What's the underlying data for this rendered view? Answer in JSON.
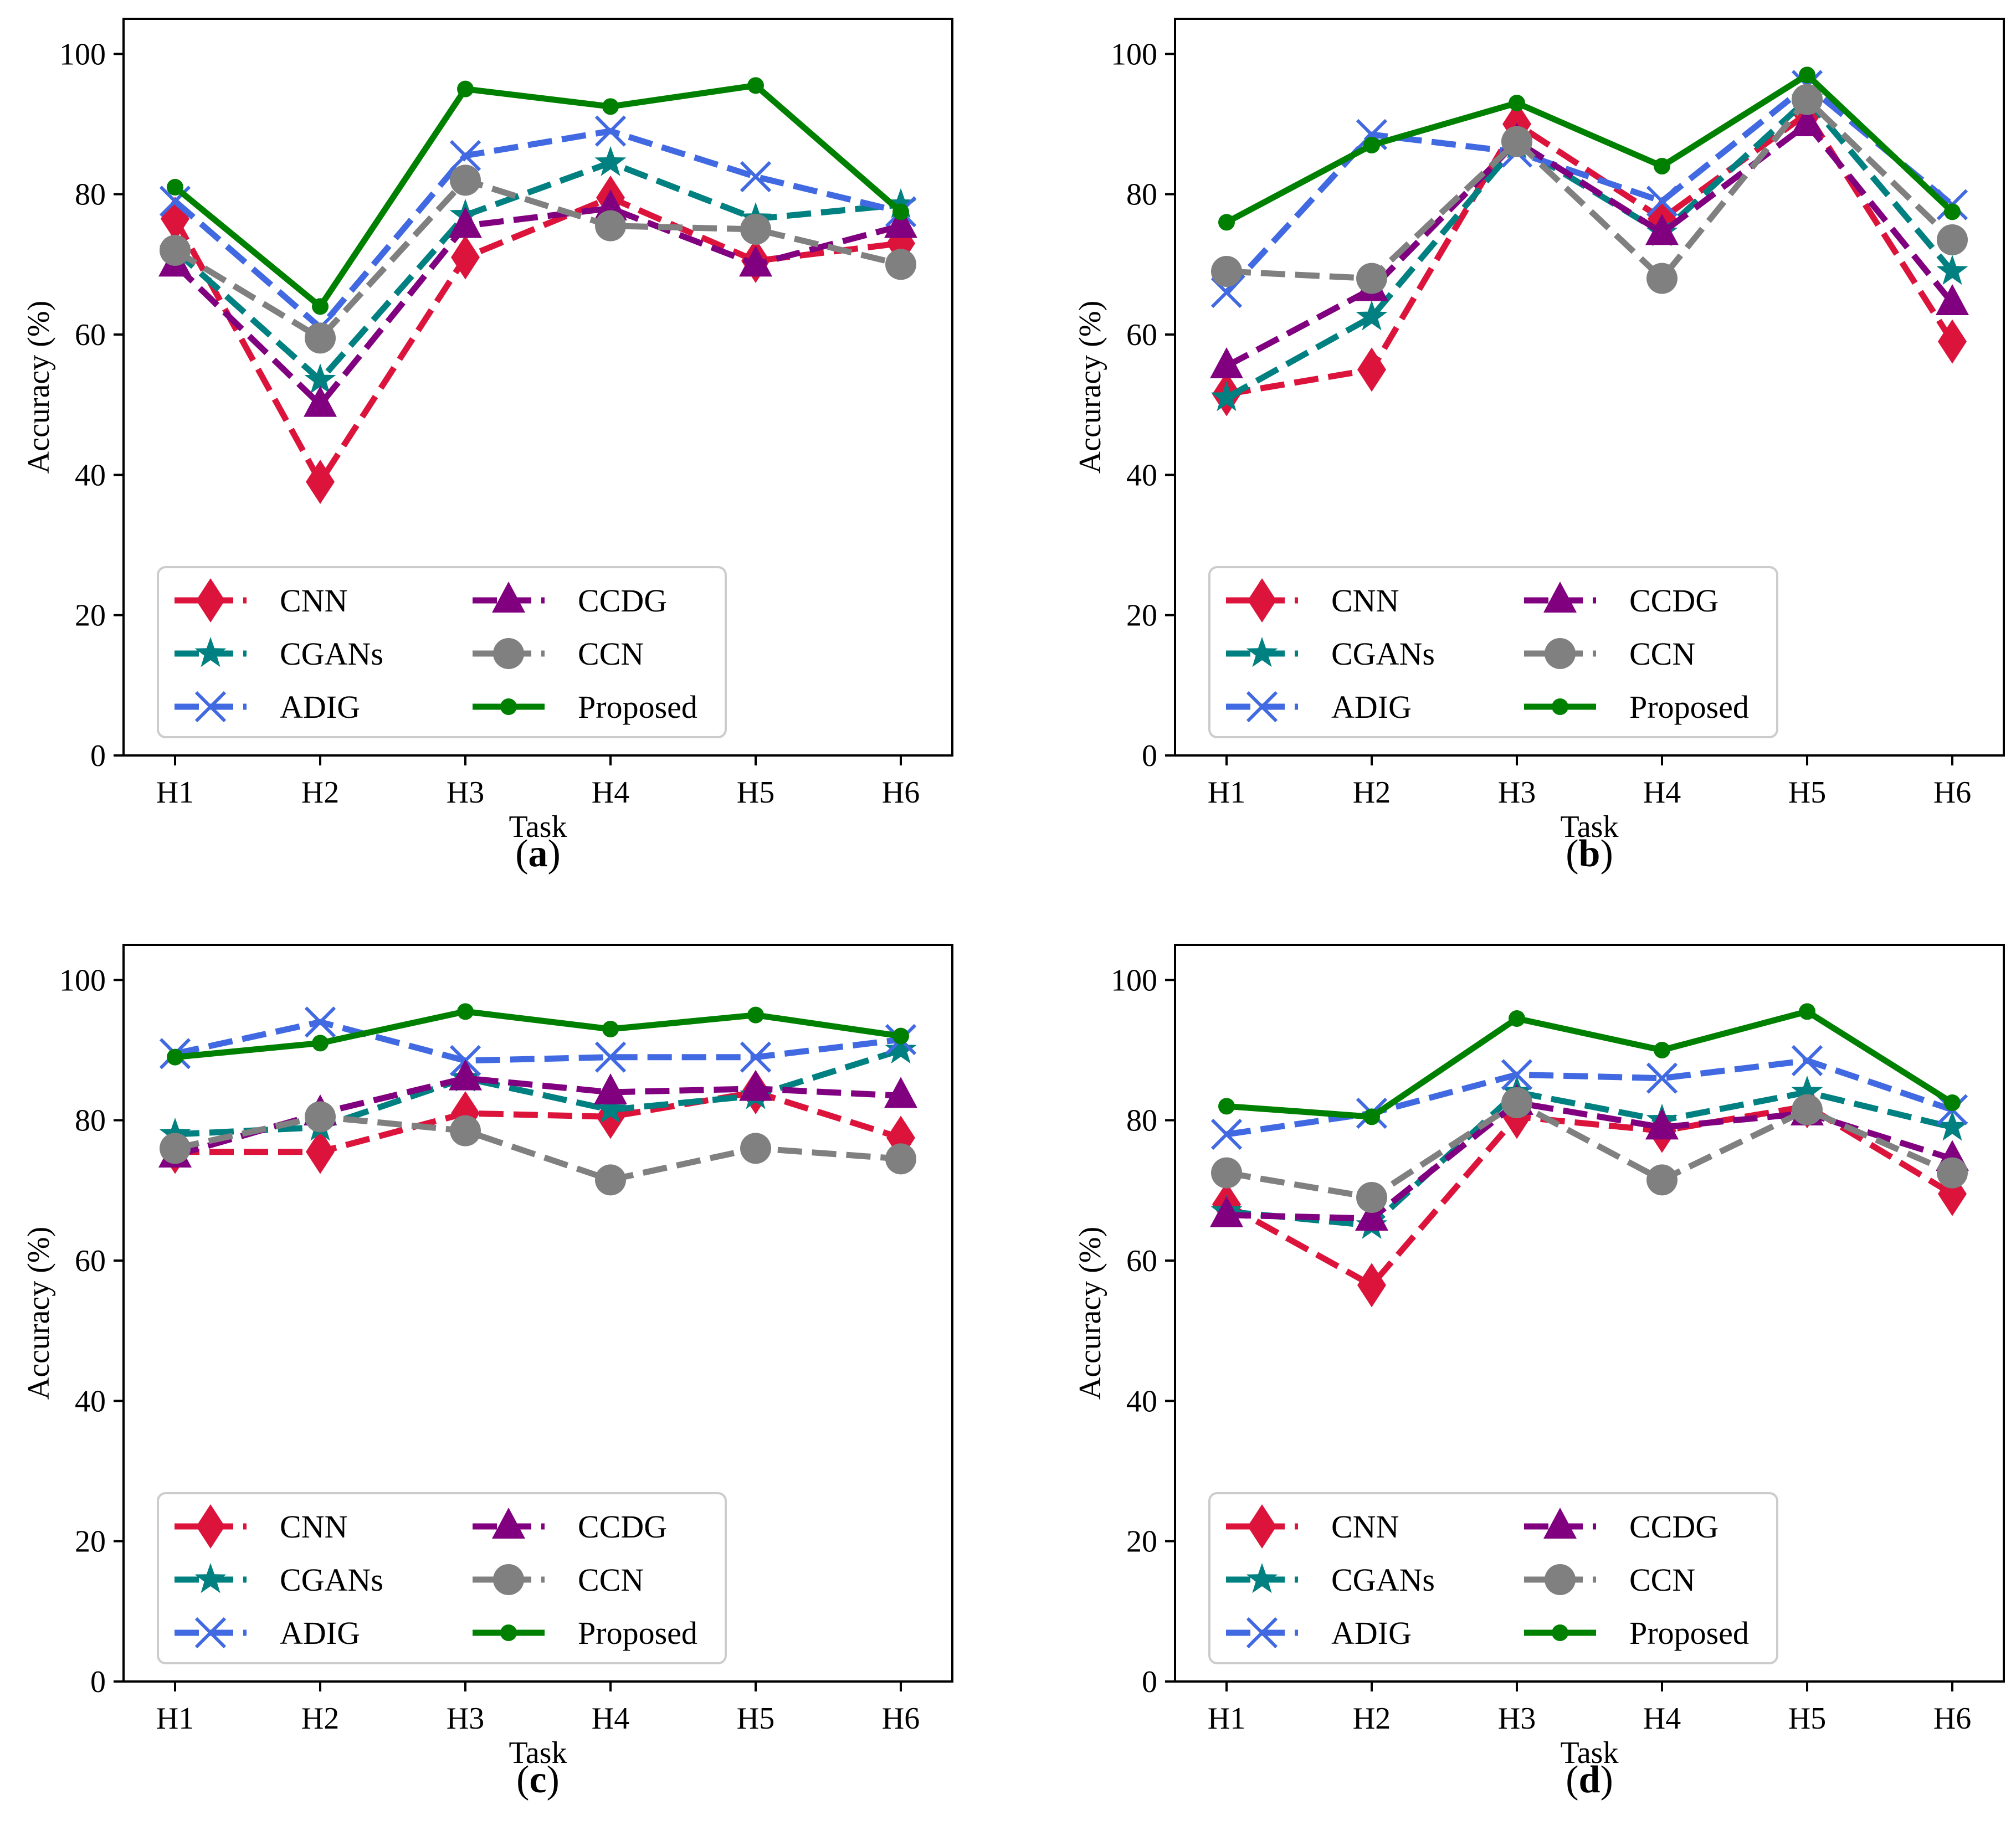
{
  "figure": {
    "panel_label_format": "({id})"
  },
  "legend": {
    "entries": [
      {
        "name": "CNN",
        "color": "#dc143c",
        "marker": "diamond",
        "dash": "dashed"
      },
      {
        "name": "CGANs",
        "color": "#008080",
        "marker": "star",
        "dash": "dashed"
      },
      {
        "name": "ADIG",
        "color": "#4169e1",
        "marker": "x",
        "dash": "dashed"
      },
      {
        "name": "CCDG",
        "color": "#800080",
        "marker": "triangle",
        "dash": "dashed"
      },
      {
        "name": "CCN",
        "color": "#808080",
        "marker": "circle",
        "dash": "dashed"
      },
      {
        "name": "Proposed",
        "color": "#008000",
        "marker": "dot",
        "dash": "solid"
      }
    ],
    "placement": "lower-left"
  },
  "chart_data": [
    {
      "id": "a",
      "type": "line",
      "xlabel": "Task",
      "ylabel": "Accuracy (%)",
      "ylim": [
        0,
        105
      ],
      "yticks": [
        0,
        20,
        40,
        60,
        80,
        100
      ],
      "categories": [
        "H1",
        "H2",
        "H3",
        "H4",
        "H5",
        "H6"
      ],
      "series": [
        {
          "name": "CNN",
          "values": [
            76.5,
            39.0,
            71.0,
            79.5,
            70.5,
            73.0
          ]
        },
        {
          "name": "CGANs",
          "values": [
            72.0,
            53.5,
            77.0,
            84.5,
            76.5,
            78.5
          ]
        },
        {
          "name": "ADIG",
          "values": [
            79.0,
            61.0,
            85.5,
            89.0,
            82.5,
            77.5
          ]
        },
        {
          "name": "CCDG",
          "values": [
            70.0,
            50.0,
            75.5,
            78.0,
            70.0,
            75.5
          ]
        },
        {
          "name": "CCN",
          "values": [
            72.0,
            59.5,
            82.0,
            75.5,
            75.0,
            70.0
          ]
        },
        {
          "name": "Proposed",
          "values": [
            81.0,
            64.0,
            95.0,
            92.5,
            95.5,
            77.5
          ]
        }
      ]
    },
    {
      "id": "b",
      "type": "line",
      "xlabel": "Task",
      "ylabel": "Accuracy (%)",
      "ylim": [
        0,
        105
      ],
      "yticks": [
        0,
        20,
        40,
        60,
        80,
        100
      ],
      "categories": [
        "H1",
        "H2",
        "H3",
        "H4",
        "H5",
        "H6"
      ],
      "series": [
        {
          "name": "CNN",
          "values": [
            51.5,
            55.0,
            90.0,
            76.5,
            91.5,
            59.0
          ]
        },
        {
          "name": "CGANs",
          "values": [
            51.0,
            62.5,
            87.0,
            74.5,
            93.5,
            69.0
          ]
        },
        {
          "name": "ADIG",
          "values": [
            66.0,
            88.5,
            86.0,
            79.0,
            95.5,
            78.5
          ]
        },
        {
          "name": "CCDG",
          "values": [
            55.5,
            66.5,
            87.5,
            74.5,
            90.0,
            64.5
          ]
        },
        {
          "name": "CCN",
          "values": [
            69.0,
            68.0,
            87.5,
            68.0,
            93.5,
            73.5
          ]
        },
        {
          "name": "Proposed",
          "values": [
            76.0,
            87.0,
            93.0,
            84.0,
            97.0,
            77.5
          ]
        }
      ]
    },
    {
      "id": "c",
      "type": "line",
      "xlabel": "Task",
      "ylabel": "Accuracy (%)",
      "ylim": [
        0,
        105
      ],
      "yticks": [
        0,
        20,
        40,
        60,
        80,
        100
      ],
      "categories": [
        "H1",
        "H2",
        "H3",
        "H4",
        "H5",
        "H6"
      ],
      "series": [
        {
          "name": "CNN",
          "values": [
            75.5,
            75.5,
            81.0,
            80.5,
            84.0,
            77.5
          ]
        },
        {
          "name": "CGANs",
          "values": [
            78.0,
            79.0,
            86.0,
            81.5,
            83.5,
            90.0
          ]
        },
        {
          "name": "ADIG",
          "values": [
            89.5,
            94.0,
            88.5,
            89.0,
            89.0,
            91.5
          ]
        },
        {
          "name": "CCDG",
          "values": [
            75.0,
            81.0,
            86.0,
            84.0,
            84.5,
            83.5
          ]
        },
        {
          "name": "CCN",
          "values": [
            76.0,
            80.5,
            78.5,
            71.5,
            76.0,
            74.5
          ]
        },
        {
          "name": "Proposed",
          "values": [
            89.0,
            91.0,
            95.5,
            93.0,
            95.0,
            92.0
          ]
        }
      ]
    },
    {
      "id": "d",
      "type": "line",
      "xlabel": "Task",
      "ylabel": "Accuracy (%)",
      "ylim": [
        0,
        105
      ],
      "yticks": [
        0,
        20,
        40,
        60,
        80,
        100
      ],
      "categories": [
        "H1",
        "H2",
        "H3",
        "H4",
        "H5",
        "H6"
      ],
      "series": [
        {
          "name": "CNN",
          "values": [
            68.0,
            56.5,
            80.5,
            78.5,
            82.0,
            69.5
          ]
        },
        {
          "name": "CGANs",
          "values": [
            67.0,
            65.0,
            84.0,
            80.0,
            84.0,
            79.0
          ]
        },
        {
          "name": "ADIG",
          "values": [
            78.0,
            81.0,
            86.5,
            86.0,
            88.5,
            81.5
          ]
        },
        {
          "name": "CCDG",
          "values": [
            66.5,
            66.0,
            82.5,
            79.0,
            81.0,
            74.5
          ]
        },
        {
          "name": "CCN",
          "values": [
            72.5,
            69.0,
            82.5,
            71.5,
            81.5,
            72.5
          ]
        },
        {
          "name": "Proposed",
          "values": [
            82.0,
            80.5,
            94.5,
            90.0,
            95.5,
            82.5
          ]
        }
      ]
    }
  ]
}
